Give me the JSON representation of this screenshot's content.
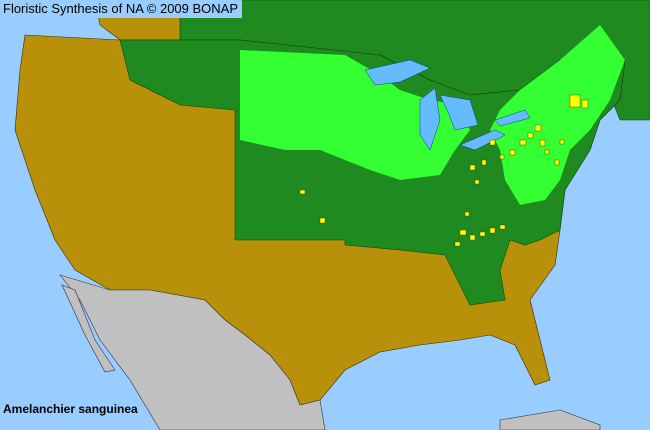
{
  "title": "Floristic Synthesis of NA © 2009 BONAP",
  "species": "Amelanchier sanguinea",
  "colors": {
    "ocean": "#99ccff",
    "absent_state": "#b8900a",
    "present_state": "#1f8a1f",
    "present_county": "#33ff33",
    "rare_county": "#ffff00",
    "outside_range": "#c0c0c0",
    "canada": "#1f8a1f"
  }
}
